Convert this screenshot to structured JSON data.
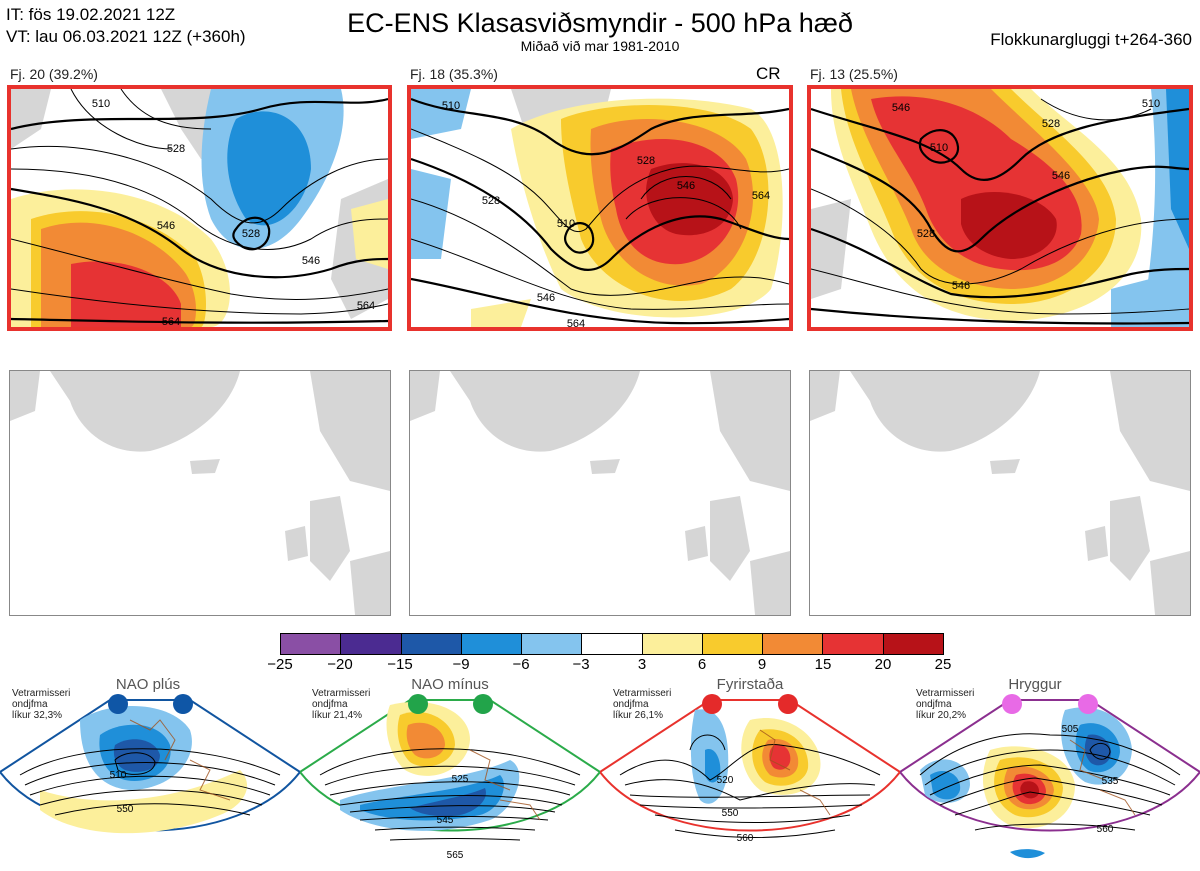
{
  "header": {
    "it_line": "IT: fös 19.02.2021 12Z",
    "vt_line": "VT: lau 06.03.2021 12Z  (+360h)",
    "title": "EC-ENS Klasasviðsmyndir - 500 hPa hæð",
    "subtitle": "Miðað við mar 1981-2010",
    "window": "Flokkunargluggi t+264-360"
  },
  "clusters": [
    {
      "label": "Fj. 20 (39.2%)",
      "contours": [
        "546",
        "528",
        "528",
        "546",
        "564",
        "510",
        "564"
      ]
    },
    {
      "label": "Fj. 18 (35.3%)",
      "tag": "CR",
      "contours": [
        "510",
        "528",
        "546",
        "564",
        "510",
        "528",
        "546",
        "564"
      ]
    },
    {
      "label": "Fj. 13 (25.5%)",
      "contours": [
        "546",
        "528",
        "510",
        "528",
        "546",
        "546",
        "510"
      ]
    }
  ],
  "colorbar": {
    "ticks": [
      "−25",
      "−20",
      "−15",
      "−9",
      "−6",
      "−3",
      "3",
      "6",
      "9",
      "15",
      "20",
      "25"
    ],
    "colors": [
      "#8a4fa5",
      "#4b2b91",
      "#1e58a8",
      "#1f8fd9",
      "#84c4ee",
      "#ffffff",
      "#fcef9b",
      "#f8cb2d",
      "#f28a35",
      "#e63334",
      "#b71218"
    ]
  },
  "regimes": [
    {
      "name": "NAO plús",
      "meta": [
        "Vetrarmisseri",
        "ondjfma",
        "líkur 32,3%"
      ],
      "color": "#1155a0",
      "dot": "#0f56a6",
      "contours": [
        "510",
        "550"
      ]
    },
    {
      "name": "NAO mínus",
      "meta": [
        "Vetrarmisseri",
        "ondjfma",
        "líkur 21,4%"
      ],
      "color": "#2bab4a",
      "dot": "#22a44a",
      "contours": [
        "525",
        "545",
        "565"
      ]
    },
    {
      "name": "Fyrirstaða",
      "meta": [
        "Vetrarmisseri",
        "ondjfma",
        "líkur 26,1%"
      ],
      "color": "#e8322d",
      "dot": "#e42a2a",
      "contours": [
        "520",
        "550",
        "560"
      ]
    },
    {
      "name": "Hryggur",
      "meta": [
        "Vetrarmisseri",
        "ondjfma",
        "líkur 20,2%"
      ],
      "color": "#8b2f8f",
      "dot": "#e86ae6",
      "contours": [
        "505",
        "535",
        "560"
      ]
    }
  ]
}
